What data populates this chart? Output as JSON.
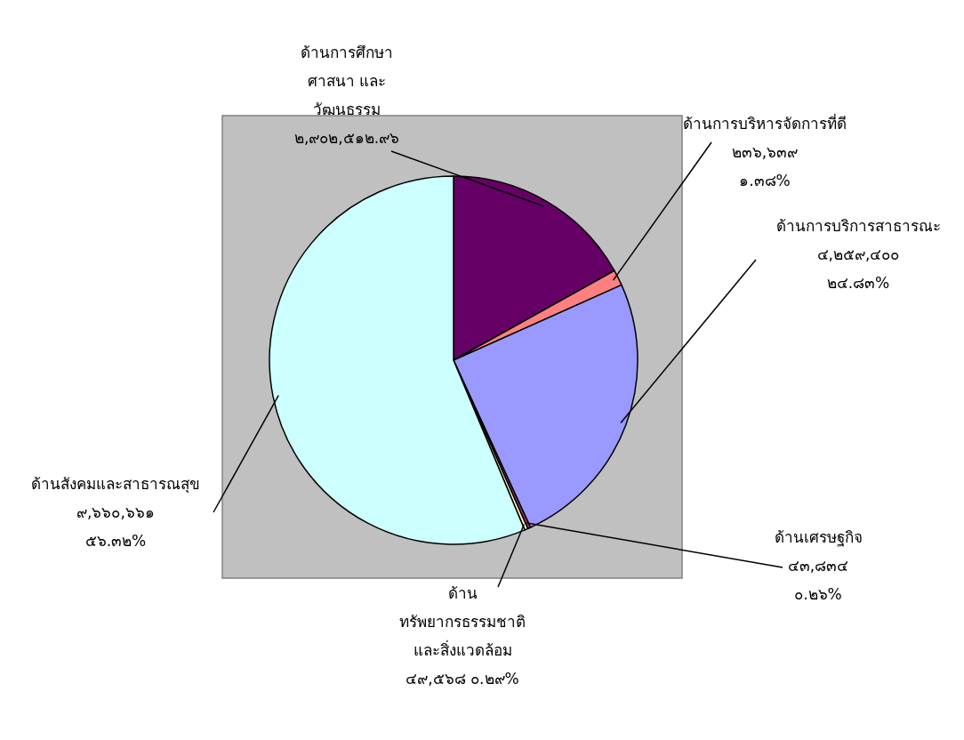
{
  "chart_data": {
    "type": "pie",
    "categories": [
      "ด้านการศึกษา\nศาสนา และ\nวัฒนธรรม",
      "ด้านการบริหารจัดการที่ดี",
      "ด้านการบริการสาธารณะ",
      "ด้านเศรษฐกิจ",
      "ด้าน\nทรัพยากรธรรมชาติ\nและสิ่งแวดล้อม",
      "ด้านสังคมและสาธารณสุข"
    ],
    "values": [
      2902512.96,
      236639,
      4259400,
      43834,
      49568,
      9660661
    ],
    "value_labels": [
      "๒,๙๐๒,๕๑๒.๙๖",
      "๒๓๖,๖๓๙\n๑.๓๘%",
      "๔,๒๕๙,๔๐๐\n๒๔.๘๓%",
      "๔๓,๘๓๔\n๐.๒๖%",
      "๔๙,๕๖๘   ๐.๒๙%",
      "๙,๖๖๐,๖๖๑\n๕๖.๓๒%"
    ],
    "colors": [
      "#660066",
      "#ff8080",
      "#9999ff",
      "#993366",
      "#ffffcc",
      "#ccffff"
    ]
  }
}
